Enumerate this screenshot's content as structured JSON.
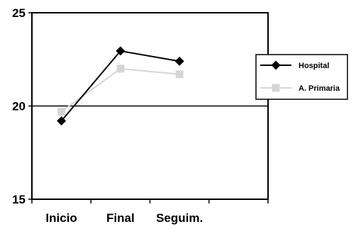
{
  "chart_data": {
    "type": "line",
    "categories": [
      "Inicio",
      "Final",
      "Seguim."
    ],
    "ylim": [
      15,
      25
    ],
    "yticks": [
      15,
      20,
      25
    ],
    "grid": "horizontal line at 20",
    "legend_placement": "right",
    "series": [
      {
        "name": "Hospital",
        "values": [
          19.2,
          22.95,
          22.4
        ],
        "color": "#000000",
        "marker": "diamond"
      },
      {
        "name": "A. Primaria",
        "values": [
          19.7,
          22.0,
          21.7
        ],
        "color": "#d6d6d6",
        "marker": "square"
      }
    ]
  }
}
